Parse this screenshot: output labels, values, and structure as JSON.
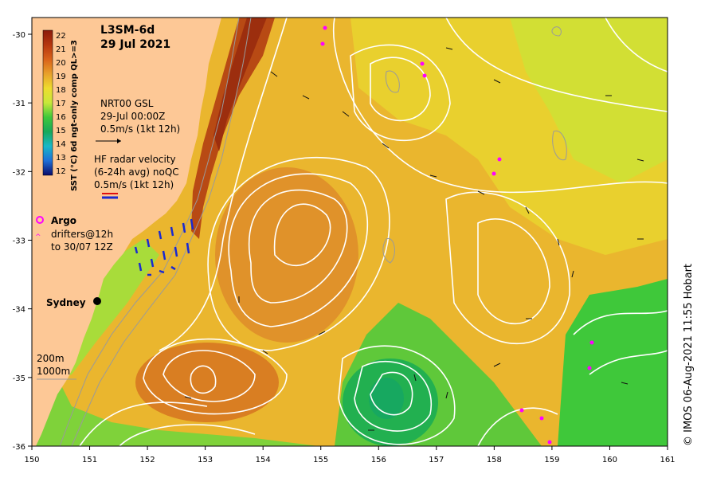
{
  "title": "L3SM-6d",
  "date": "29 Jul 2021",
  "colorbar": {
    "label": "SST (°C) 6d ngt-only comp QL>=3",
    "ticks": [
      "22",
      "21",
      "20",
      "19",
      "18",
      "17",
      "16",
      "15",
      "14",
      "13",
      "12"
    ],
    "colors": [
      "#8b1a0b",
      "#b5360e",
      "#d9621a",
      "#e8a02a",
      "#eedc2e",
      "#c8e83a",
      "#3fc83a",
      "#17a85a",
      "#19b8c8",
      "#1f6fd6",
      "#1a2a9a",
      "#0b0b6a"
    ]
  },
  "gsl": {
    "line1": "NRT00 GSL",
    "line2": "29-Jul 00:00Z",
    "line3": "0.5m/s (1kt 12h)"
  },
  "hf": {
    "line1": "HF radar velocity",
    "line2": "(6-24h avg) noQC",
    "line3": "0.5m/s (1kt 12h)"
  },
  "argo": {
    "label": "Argo",
    "drifters1": "drifters@12h",
    "drifters2": "to 30/07 12Z"
  },
  "city": "Sydney",
  "isobaths": {
    "a": "200m",
    "b": "1000m"
  },
  "credit": "© IMOS 06-Aug-2021 11:55 Hobart",
  "axes": {
    "x_ticks": [
      "150",
      "151",
      "152",
      "153",
      "154",
      "155",
      "156",
      "157",
      "158",
      "159",
      "160",
      "161"
    ],
    "y_ticks": [
      "-30",
      "-31",
      "-32",
      "-33",
      "-34",
      "-35",
      "-36"
    ]
  },
  "colors": {
    "land": "#fdc896",
    "warm_core": "#e89a2e",
    "ocean_yellow": "#eedc2e",
    "cold_green": "#3fc83a",
    "ec_core": "#b5360e"
  }
}
